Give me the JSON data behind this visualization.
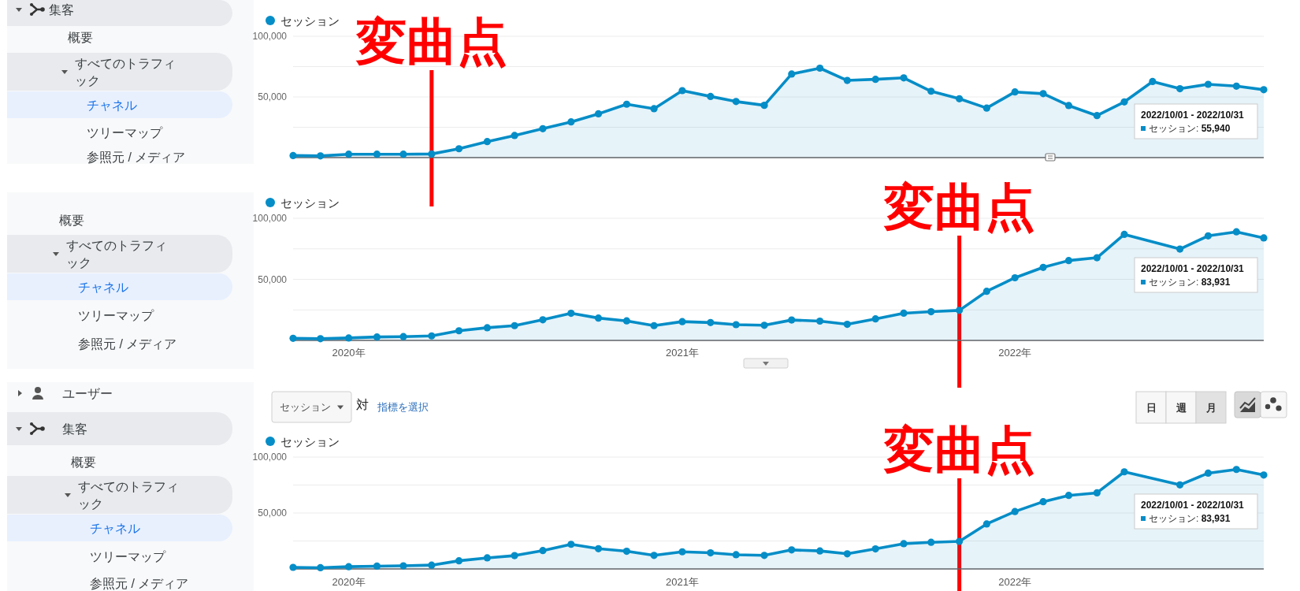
{
  "chart_data": [
    {
      "type": "other",
      "annotations": [
        "集客",
        "概要",
        "すべてのトラフィック",
        "チャネル",
        "ツリーマップ",
        "参照元 / メディア"
      ]
    },
    {
      "type": "area",
      "x": [
        "2019-11",
        "2019-12",
        "2020-01",
        "2020-02",
        "2020-03",
        "2020-04",
        "2020-05",
        "2020-06",
        "2020-07",
        "2020-08",
        "2020-09",
        "2020-10",
        "2020-11",
        "2020-12",
        "2021-01",
        "2021-02",
        "2021-03",
        "2021-04",
        "2021-05",
        "2021-06",
        "2021-07",
        "2021-08",
        "2021-09",
        "2021-10",
        "2021-11",
        "2021-12",
        "2022-01",
        "2022-02",
        "2022-03",
        "2022-04",
        "2022-05",
        "2022-06",
        "2022-07",
        "2022-08",
        "2022-09",
        "2022-10"
      ],
      "series": [
        {
          "name": "セッション",
          "color": "#058dc7",
          "values": [
            1700,
            1400,
            2800,
            2800,
            2800,
            3000,
            7300,
            13200,
            18200,
            23800,
            29400,
            36100,
            44000,
            40300,
            55200,
            50400,
            46200,
            43100,
            68900,
            73700,
            63600,
            64500,
            65700,
            54700,
            48500,
            40800,
            54100,
            52700,
            42900,
            34600,
            45900,
            62700,
            56800,
            60400,
            58900,
            55940
          ]
        }
      ],
      "xlim": [
        "2019-11",
        "2022-10"
      ],
      "ylim": [
        0,
        100000
      ],
      "yticks": [
        {
          "value": 25000,
          "label": null
        },
        {
          "value": 50000,
          "label": "50,000"
        },
        {
          "value": 75000,
          "label": null
        },
        {
          "value": 100000,
          "label": "100,000"
        }
      ],
      "tick_labels": "y",
      "grid": "y",
      "legend": "top left",
      "marker": "circle",
      "ref_lines": [
        {
          "axis": "x",
          "value": "2020-04",
          "label": "変曲点",
          "color": "#ff0000"
        }
      ],
      "annotations": [
        "2022/10/01 - 2022/10/31\nセッション: 55,940"
      ]
    },
    {
      "type": "other",
      "annotations": [
        "概要",
        "すべてのトラフィック",
        "チャネル",
        "ツリーマップ",
        "参照元 / メディア"
      ]
    },
    {
      "type": "area",
      "x": [
        "2019-11",
        "2019-12",
        "2020-01",
        "2020-02",
        "2020-03",
        "2020-04",
        "2020-05",
        "2020-06",
        "2020-07",
        "2020-08",
        "2020-09",
        "2020-10",
        "2020-11",
        "2020-12",
        "2021-01",
        "2021-02",
        "2021-03",
        "2021-04",
        "2021-05",
        "2021-06",
        "2021-07",
        "2021-08",
        "2021-09",
        "2021-10",
        "2021-11",
        "2021-12",
        "2022-01",
        "2022-02",
        "2022-03",
        "2022-04",
        "2022-05",
        "2022-06",
        "2022-07",
        "2022-08",
        "2022-09",
        "2022-10"
      ],
      "series": [
        {
          "name": "セッション",
          "color": "#058dc7",
          "values": [
            1700,
            1400,
            2000,
            2800,
            3100,
            3700,
            7900,
            10400,
            12100,
            16900,
            22200,
            18300,
            16000,
            12100,
            15400,
            14600,
            12900,
            12400,
            16700,
            15800,
            13200,
            17600,
            22300,
            23500,
            24600,
            40200,
            51300,
            59800,
            65400,
            67700,
            86800,
            null,
            74800,
            85600,
            88900,
            83931
          ]
        }
      ],
      "xlim": [
        "2019-11",
        "2022-10"
      ],
      "ylim": [
        0,
        100000
      ],
      "yticks": [
        {
          "value": 25000,
          "label": null
        },
        {
          "value": 50000,
          "label": "50,000"
        },
        {
          "value": 75000,
          "label": null
        },
        {
          "value": 100000,
          "label": "100,000"
        }
      ],
      "xticks": [
        {
          "value": "2020-01",
          "label": "2020年"
        },
        {
          "value": "2021-01",
          "label": "2021年"
        },
        {
          "value": "2022-01",
          "label": "2022年"
        }
      ],
      "grid": "y",
      "legend": "top left",
      "marker": "circle",
      "ref_lines": [
        {
          "axis": "x",
          "value": "2021-11",
          "label": "変曲点",
          "color": "#ff0000"
        }
      ],
      "annotations": [
        "2022/10/01 - 2022/10/31\nセッション: 83,931"
      ]
    },
    {
      "type": "other",
      "annotations": [
        "ユーザー",
        "集客",
        "概要",
        "すべてのトラフィック",
        "チャネル",
        "ツリーマップ",
        "参照元 / メディア"
      ]
    },
    {
      "type": "other",
      "annotations": [
        "セッション",
        "対",
        "指標を選択",
        "日",
        "週",
        "月"
      ]
    },
    {
      "type": "area",
      "x": [
        "2019-11",
        "2019-12",
        "2020-01",
        "2020-02",
        "2020-03",
        "2020-04",
        "2020-05",
        "2020-06",
        "2020-07",
        "2020-08",
        "2020-09",
        "2020-10",
        "2020-11",
        "2020-12",
        "2021-01",
        "2021-02",
        "2021-03",
        "2021-04",
        "2021-05",
        "2021-06",
        "2021-07",
        "2021-08",
        "2021-09",
        "2021-10",
        "2021-11",
        "2021-12",
        "2022-01",
        "2022-02",
        "2022-03",
        "2022-04",
        "2022-05",
        "2022-06",
        "2022-07",
        "2022-08",
        "2022-09",
        "2022-10"
      ],
      "series": [
        {
          "name": "セッション",
          "color": "#058dc7",
          "values": [
            1400,
            1100,
            2000,
            2500,
            2800,
            3400,
            7300,
            9900,
            11900,
            16400,
            22000,
            18100,
            15800,
            12100,
            15300,
            14400,
            12700,
            12100,
            17000,
            16100,
            13500,
            17900,
            22600,
            23800,
            24600,
            40200,
            51300,
            60100,
            65700,
            68000,
            86800,
            null,
            75100,
            85600,
            88900,
            83931
          ]
        }
      ],
      "xlim": [
        "2019-11",
        "2022-10"
      ],
      "ylim": [
        0,
        100000
      ],
      "yticks": [
        {
          "value": 25000,
          "label": null
        },
        {
          "value": 50000,
          "label": "50,000"
        },
        {
          "value": 75000,
          "label": null
        },
        {
          "value": 100000,
          "label": "100,000"
        }
      ],
      "xticks": [
        {
          "value": "2020-01",
          "label": "2020年"
        },
        {
          "value": "2021-01",
          "label": "2021年"
        },
        {
          "value": "2022-01",
          "label": "2022年"
        }
      ],
      "grid": "y",
      "legend": "top left",
      "marker": "circle",
      "ref_lines": [
        {
          "axis": "x",
          "value": "2021-11",
          "label": "変曲点",
          "color": "#ff0000"
        }
      ],
      "annotations": [
        "2022/10/01 - 2022/10/31\nセッション: 83,931"
      ]
    }
  ]
}
